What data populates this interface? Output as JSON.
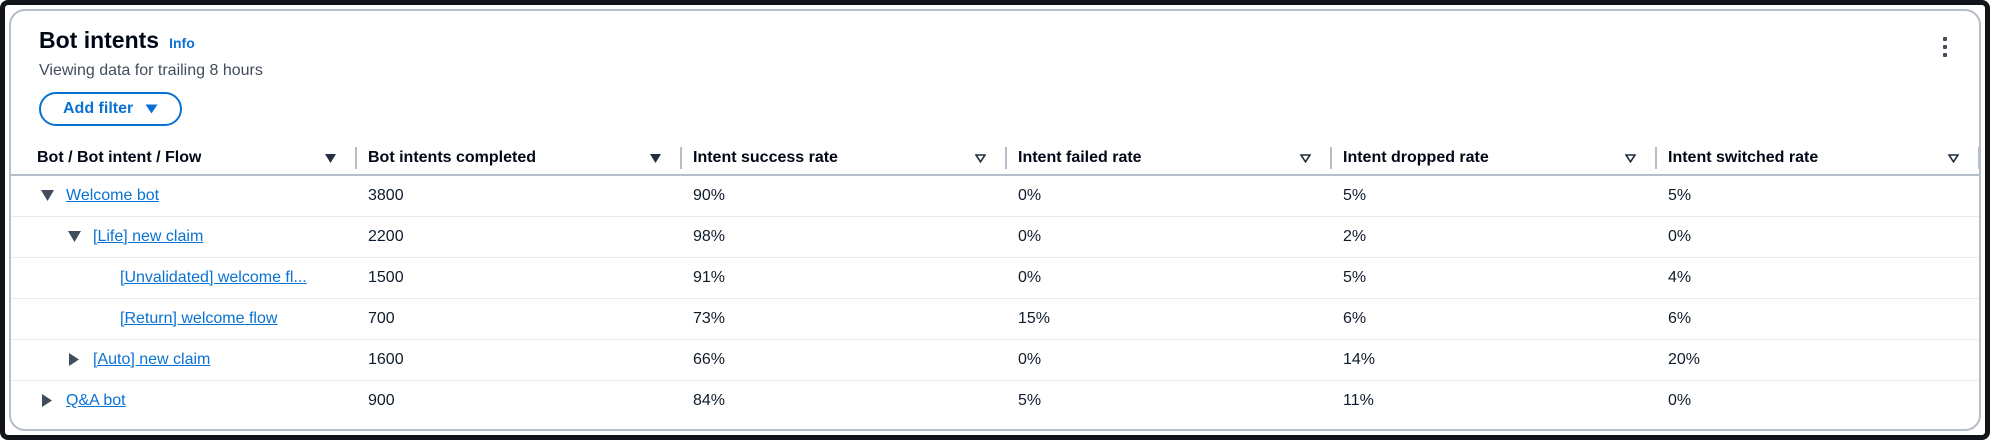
{
  "panel": {
    "title": "Bot intents",
    "info_label": "Info",
    "subtitle": "Viewing data for trailing 8 hours"
  },
  "toolbar": {
    "add_filter_label": "Add filter"
  },
  "icons": {
    "kebab_menu": "vertical-ellipsis",
    "filter_filled": "caret-down-filled",
    "filter_outlined": "caret-down-outlined",
    "expand_expanded": "triangle-down",
    "expand_collapsed": "triangle-right"
  },
  "colors": {
    "accent_link": "#0972d3",
    "heading_text": "#000716",
    "body_text": "#0f1b2a",
    "secondary_text": "#414d5c",
    "card_border": "#b6bec9",
    "header_divider": "#b6bec9",
    "row_divider": "#e9ebed"
  },
  "table": {
    "columns": [
      {
        "label": "Bot / Bot intent / Flow",
        "filter_icon": "filled"
      },
      {
        "label": "Bot intents completed",
        "filter_icon": "filled"
      },
      {
        "label": "Intent success rate",
        "filter_icon": "outlined"
      },
      {
        "label": "Intent failed rate",
        "filter_icon": "outlined"
      },
      {
        "label": "Intent dropped rate",
        "filter_icon": "outlined"
      },
      {
        "label": "Intent switched rate",
        "filter_icon": "outlined"
      }
    ],
    "rows": [
      {
        "name": "Welcome bot",
        "level": 0,
        "expand": "expanded",
        "completed": "3800",
        "success": "90%",
        "failed": "0%",
        "dropped": "5%",
        "switched": "5%"
      },
      {
        "name": "[Life] new claim",
        "level": 1,
        "expand": "expanded",
        "completed": "2200",
        "success": "98%",
        "failed": "0%",
        "dropped": "2%",
        "switched": "0%"
      },
      {
        "name": "[Unvalidated] welcome fl...",
        "level": 2,
        "expand": "none",
        "completed": "1500",
        "success": "91%",
        "failed": "0%",
        "dropped": "5%",
        "switched": "4%"
      },
      {
        "name": "[Return] welcome flow",
        "level": 2,
        "expand": "none",
        "completed": "700",
        "success": "73%",
        "failed": "15%",
        "dropped": "6%",
        "switched": "6%"
      },
      {
        "name": "[Auto] new claim",
        "level": 1,
        "expand": "collapsed",
        "completed": "1600",
        "success": "66%",
        "failed": "0%",
        "dropped": "14%",
        "switched": "20%"
      },
      {
        "name": "Q&A bot",
        "level": 0,
        "expand": "collapsed",
        "completed": "900",
        "success": "84%",
        "failed": "5%",
        "dropped": "11%",
        "switched": "0%"
      }
    ]
  }
}
